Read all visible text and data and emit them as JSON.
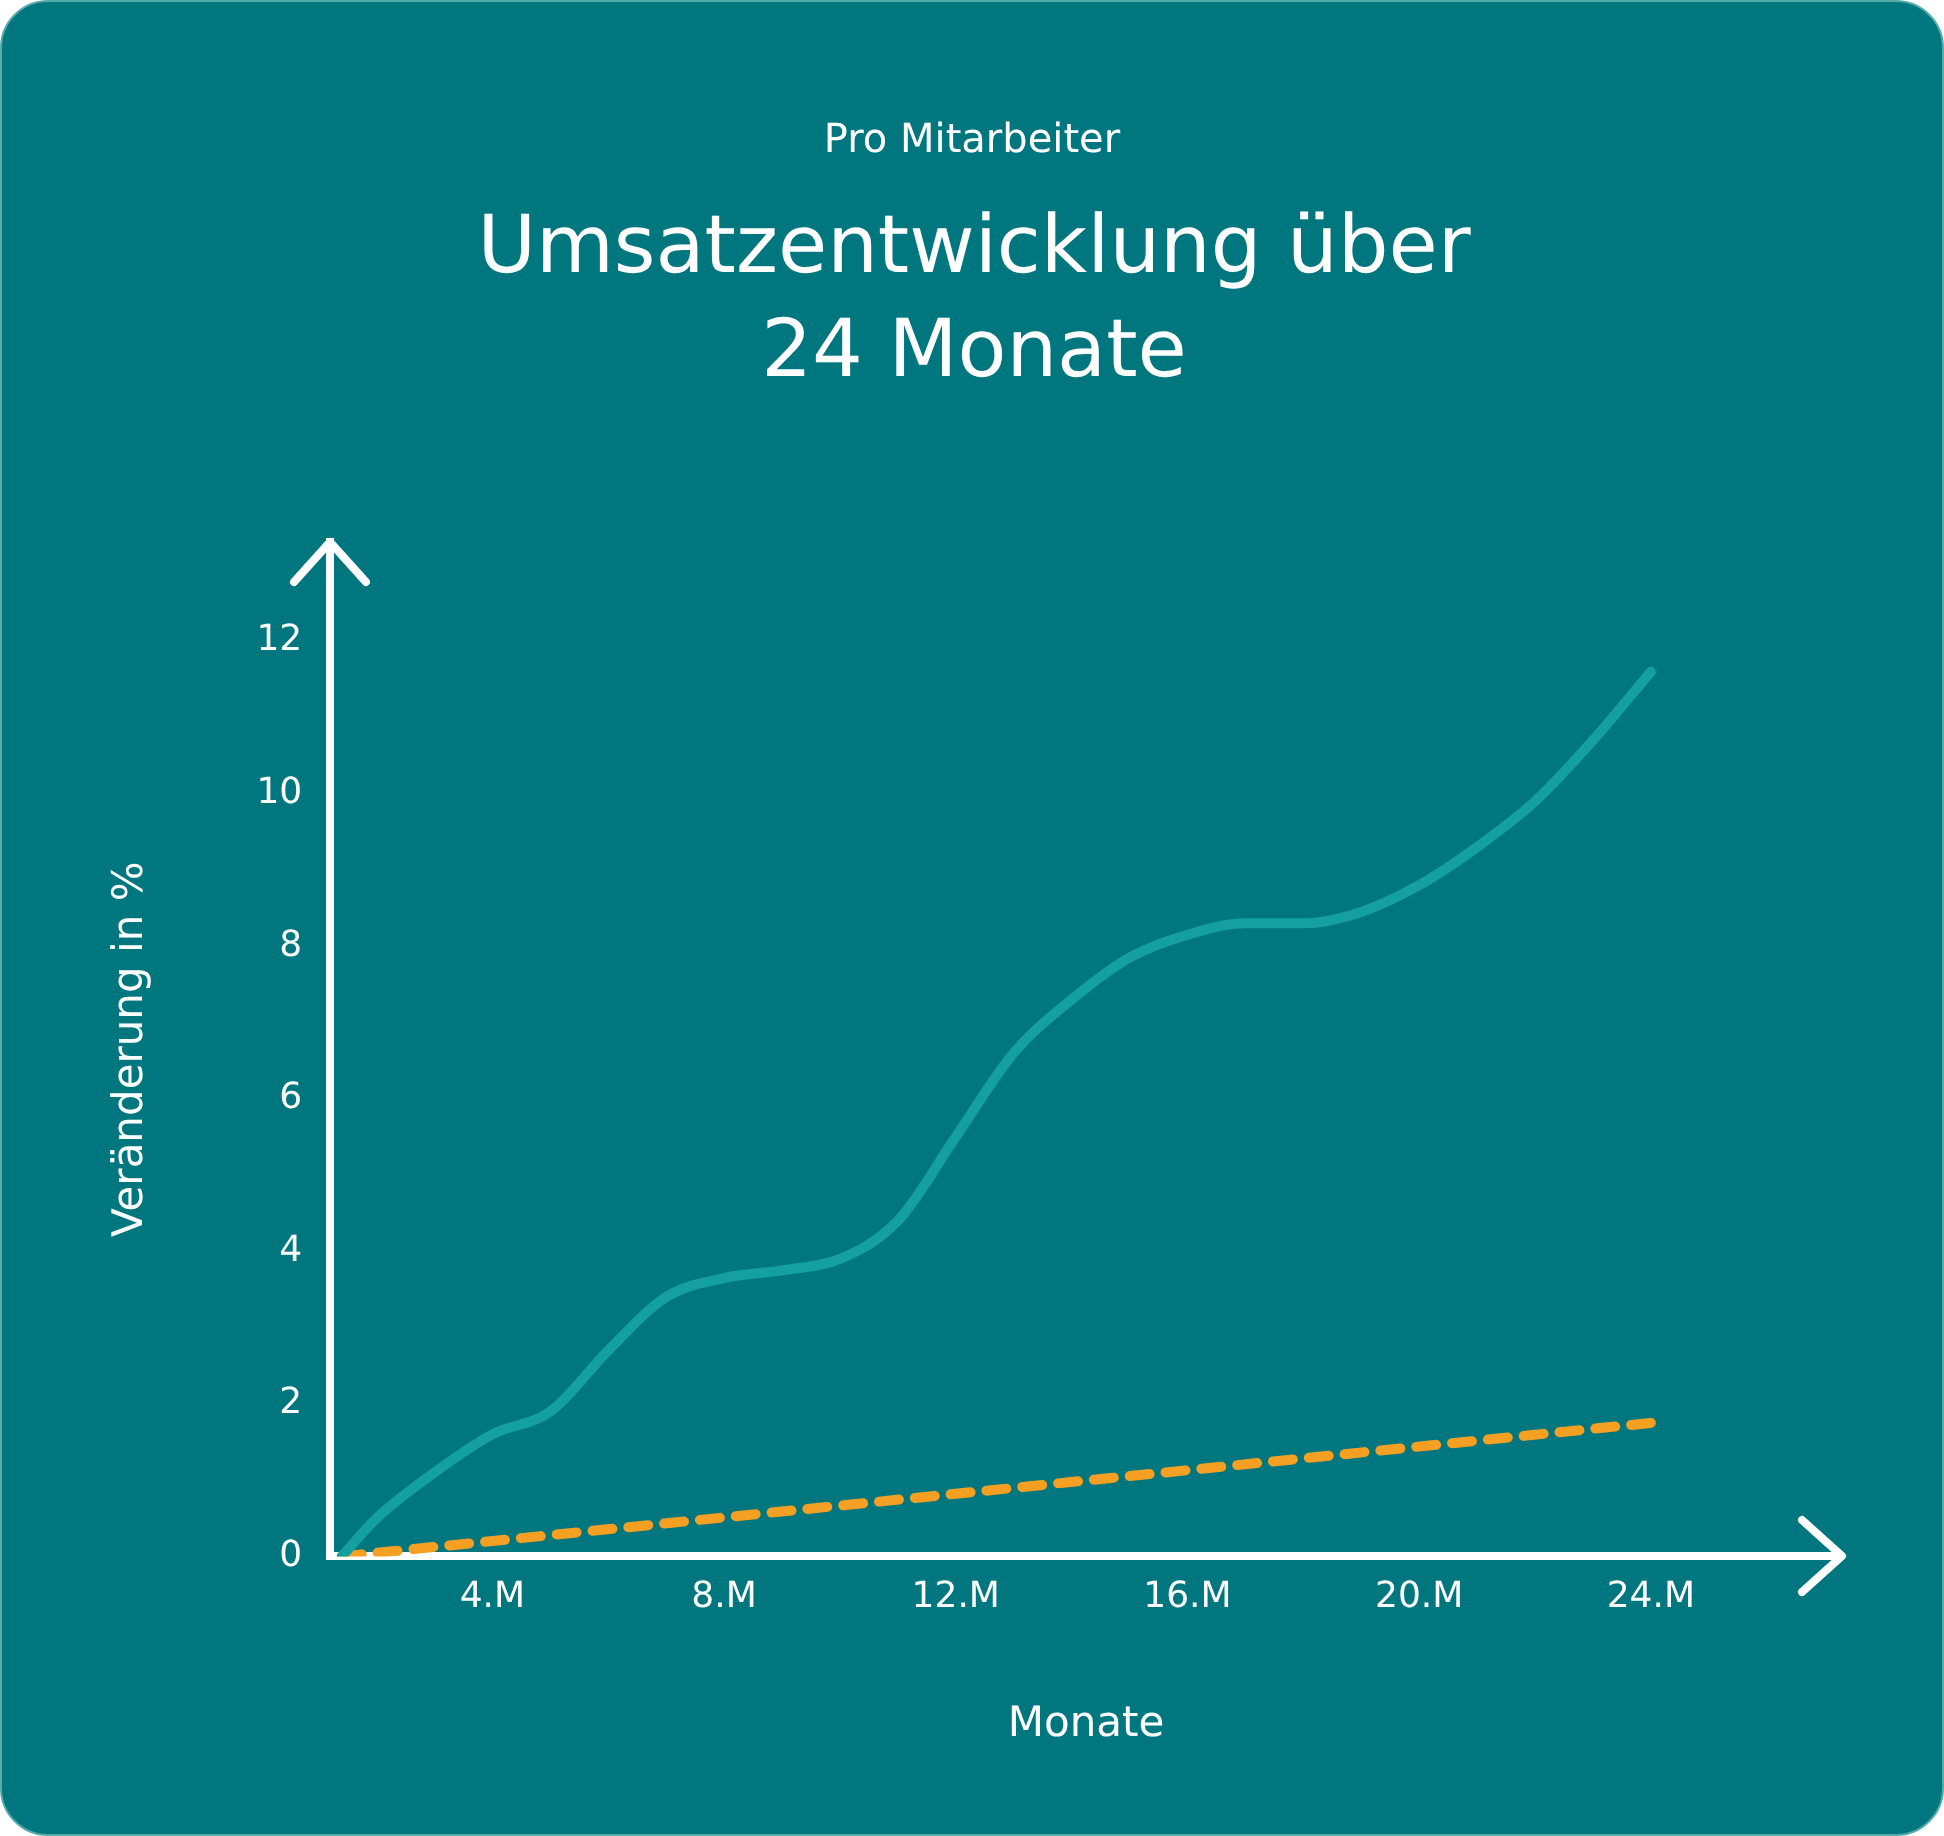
{
  "chart_data": {
    "type": "line",
    "subtitle": "Pro Mitarbeiter",
    "title": "Umsatzentwicklung über 24 Monate",
    "xlabel": "Monate",
    "ylabel": "Veränderung in %",
    "xlim": [
      1.2,
      27.3
    ],
    "xticks": [
      {
        "value": 4,
        "label": "4.M"
      },
      {
        "value": 8,
        "label": "8.M"
      },
      {
        "value": 12,
        "label": "12.M"
      },
      {
        "value": 16,
        "label": "16.M"
      },
      {
        "value": 20,
        "label": "20.M"
      },
      {
        "value": 24,
        "label": "24.M"
      }
    ],
    "ylim": [
      0,
      13.3
    ],
    "yticks": [
      0,
      2,
      4,
      6,
      8,
      10,
      12
    ],
    "grid": false,
    "legend": false,
    "marker": "none",
    "series": [
      {
        "color": "#14a0a0",
        "line_style": "solid",
        "x": [
          1.4,
          2,
          3,
          4,
          5,
          6,
          7,
          8,
          9,
          10,
          11,
          12,
          13,
          14,
          15,
          16,
          17,
          18,
          19,
          20,
          21,
          22,
          23,
          24
        ],
        "values": [
          0,
          0.5,
          1.1,
          1.6,
          1.9,
          2.7,
          3.4,
          3.65,
          3.75,
          3.9,
          4.4,
          5.5,
          6.6,
          7.3,
          7.85,
          8.15,
          8.3,
          8.3,
          8.45,
          8.8,
          9.3,
          9.9,
          10.7,
          11.6
        ]
      },
      {
        "color": "#f5a023",
        "line_style": "dashed",
        "x": [
          1.4,
          24
        ],
        "values": [
          0,
          1.75
        ]
      }
    ]
  }
}
